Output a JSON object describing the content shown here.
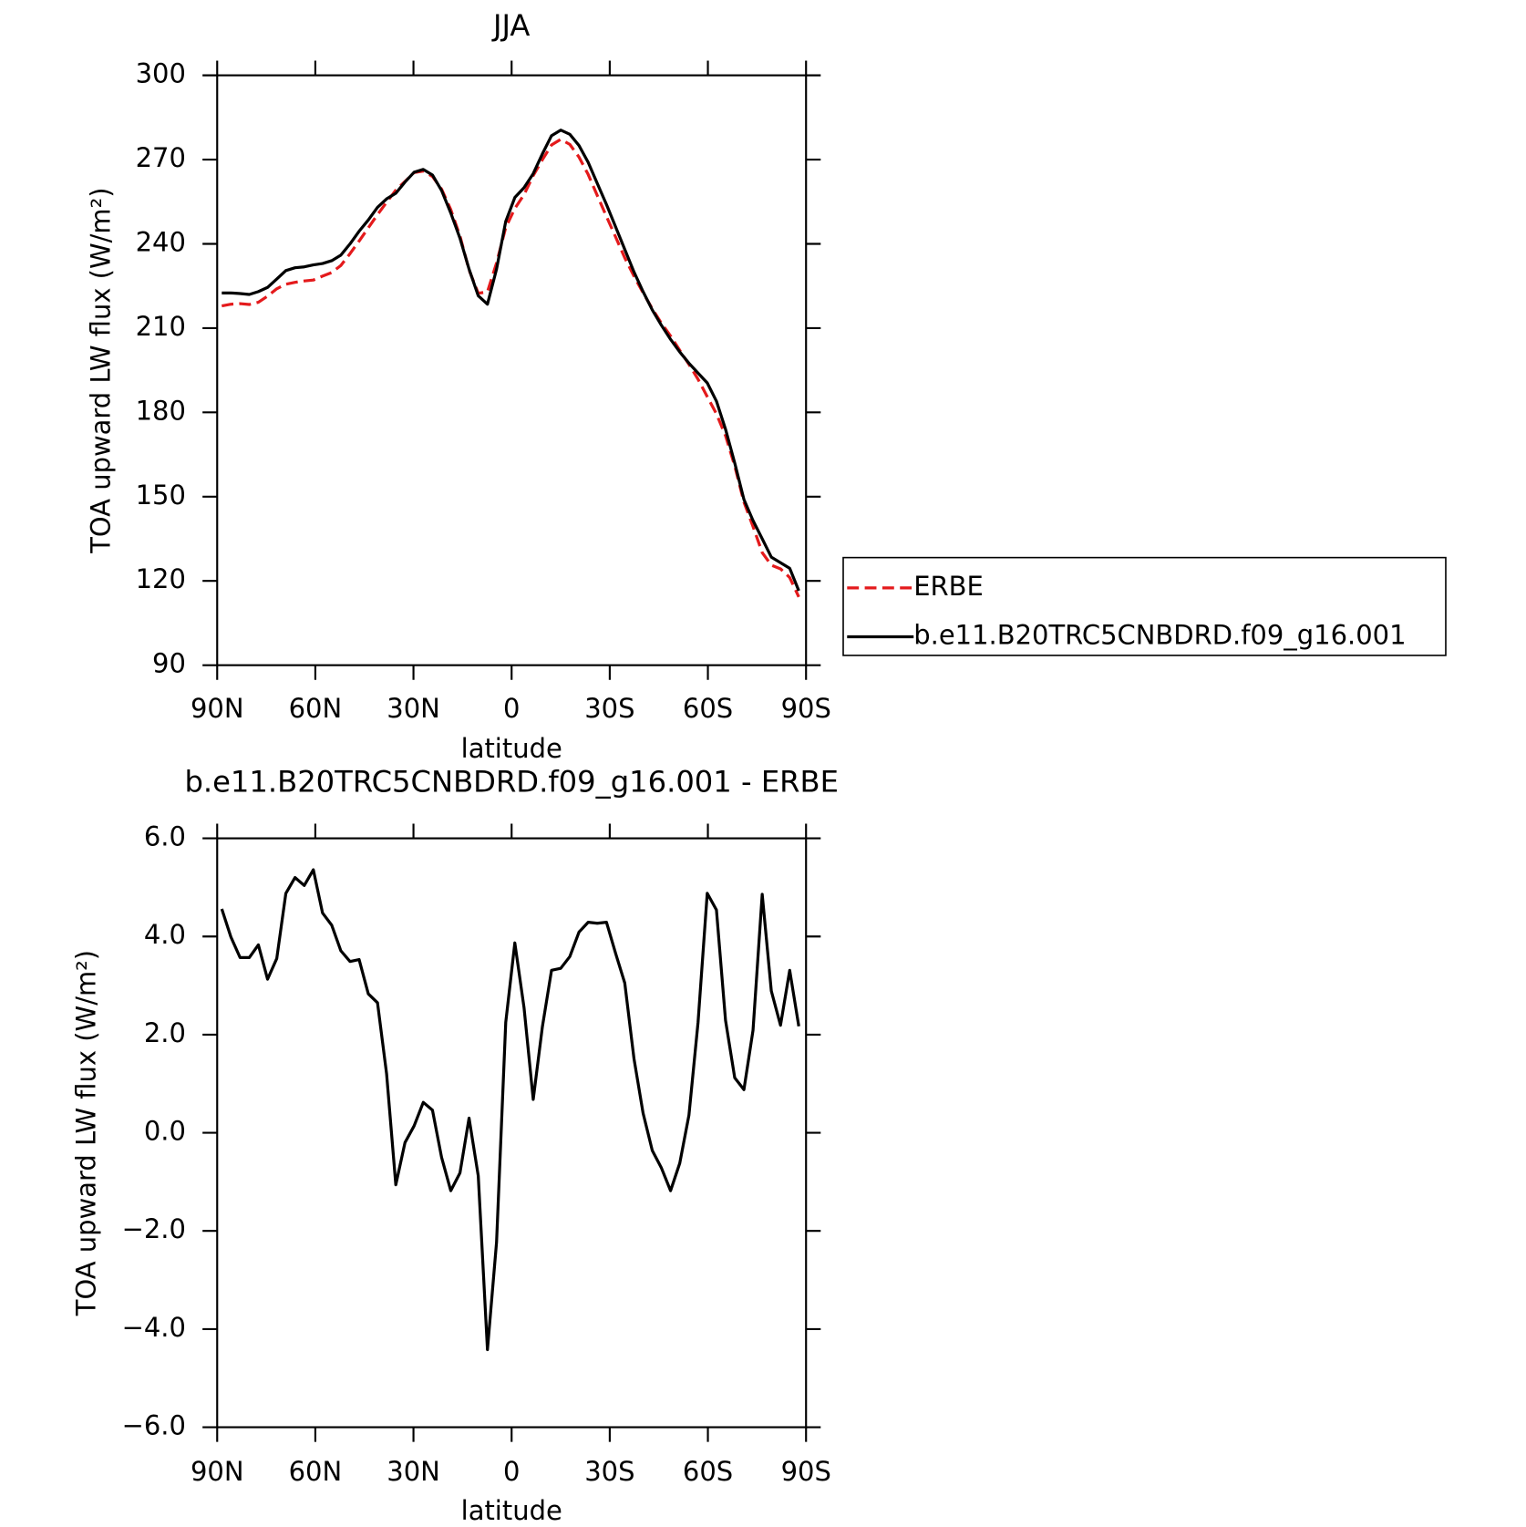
{
  "chart_data": [
    {
      "type": "line",
      "title": "JJA",
      "x_label": "latitude",
      "y_label": "TOA upward LW flux (W/m²)",
      "x": [
        88.6,
        85.8,
        83,
        80.2,
        77.4,
        74.6,
        71.8,
        69,
        66.2,
        63.4,
        60.6,
        57.8,
        55,
        52.2,
        49.4,
        46.6,
        43.8,
        41,
        38.2,
        35.4,
        32.6,
        29.8,
        27,
        24.2,
        21.4,
        18.6,
        15.8,
        13,
        10.2,
        7.4,
        4.6,
        1.8,
        -1,
        -3.8,
        -6.6,
        -9.4,
        -12.2,
        -15,
        -17.8,
        -20.6,
        -23.4,
        -26.2,
        -29,
        -31.8,
        -34.6,
        -37.4,
        -40.2,
        -43,
        -45.8,
        -48.6,
        -51.4,
        -54.2,
        -57,
        -59.8,
        -62.6,
        -65.4,
        -68.2,
        -71,
        -73.8,
        -76.6,
        -79.4,
        -82.2,
        -85,
        -87.8
      ],
      "series": [
        {
          "name": "ERBE",
          "color": "#e41a1c",
          "style": "dashed",
          "values": [
            217.9,
            218.5,
            218.7,
            218.4,
            219.2,
            221.4,
            224.0,
            225.6,
            226.3,
            226.8,
            227.1,
            228.5,
            229.8,
            232.3,
            236.5,
            241.0,
            245.7,
            250.4,
            254.8,
            259.1,
            262.2,
            265.4,
            265.9,
            264.0,
            259.5,
            252.2,
            242.8,
            230.7,
            222.4,
            222.9,
            233.2,
            245.8,
            252.6,
            257.5,
            264.3,
            269.9,
            275.2,
            277.2,
            275.4,
            270.9,
            264.7,
            257.2,
            249.7,
            242.4,
            235.0,
            228.5,
            222.6,
            216.9,
            211.7,
            207.2,
            202.1,
            197.1,
            191.8,
            185.6,
            179.5,
            171.7,
            160.9,
            148.1,
            139.4,
            130.1,
            125.6,
            124.3,
            121.2,
            114.3
          ]
        },
        {
          "name": "b.e11.B20TRC5CNBDRD.f09_g16.001",
          "color": "#000000",
          "style": "solid",
          "values": [
            222.5,
            222.5,
            222.3,
            222,
            223,
            224.5,
            227.5,
            230.5,
            231.5,
            231.8,
            232.5,
            233,
            234,
            236,
            240,
            244.5,
            248.5,
            253,
            256,
            258,
            262,
            265.5,
            266.5,
            264.5,
            259,
            251,
            242,
            231,
            221.5,
            218.5,
            231,
            248,
            256.5,
            260,
            265,
            272,
            278.5,
            280.5,
            279,
            275,
            269,
            261.5,
            254,
            246,
            238,
            230,
            223,
            216.5,
            211,
            206,
            201.5,
            197.5,
            194,
            190.5,
            184,
            174,
            162,
            149,
            141.5,
            135,
            128.5,
            126.5,
            124.5,
            116.5
          ]
        }
      ],
      "xlim": [
        90,
        -90
      ],
      "xticks": [
        {
          "value": 90,
          "label": "90N"
        },
        {
          "value": 60,
          "label": "60N"
        },
        {
          "value": 30,
          "label": "30N"
        },
        0,
        {
          "value": -30,
          "label": "30S"
        },
        {
          "value": -60,
          "label": "60S"
        },
        {
          "value": -90,
          "label": "90S"
        }
      ],
      "ylim": [
        90,
        300
      ],
      "yticks": [
        90,
        120,
        150,
        180,
        210,
        240,
        270,
        300
      ],
      "legend": "right"
    },
    {
      "type": "line",
      "title": "b.e11.B20TRC5CNBDRD.f09_g16.001 - ERBE",
      "x_label": "latitude",
      "y_label": "TOA upward LW flux (W/m²)",
      "x": [
        88.6,
        85.8,
        83,
        80.2,
        77.4,
        74.6,
        71.8,
        69,
        66.2,
        63.4,
        60.6,
        57.8,
        55,
        52.2,
        49.4,
        46.6,
        43.8,
        41,
        38.2,
        35.4,
        32.6,
        29.8,
        27,
        24.2,
        21.4,
        18.6,
        15.8,
        13,
        10.2,
        7.4,
        4.6,
        1.8,
        -1,
        -3.8,
        -6.6,
        -9.4,
        -12.2,
        -15,
        -17.8,
        -20.6,
        -23.4,
        -26.2,
        -29,
        -31.8,
        -34.6,
        -37.4,
        -40.2,
        -43,
        -45.8,
        -48.6,
        -51.4,
        -54.2,
        -57,
        -59.8,
        -62.6,
        -65.4,
        -68.2,
        -71,
        -73.8,
        -76.6,
        -79.4,
        -82.2,
        -85,
        -87.8
      ],
      "color": "#000000",
      "values": [
        4.56,
        3.99,
        3.57,
        3.57,
        3.83,
        3.13,
        3.55,
        4.88,
        5.2,
        5.04,
        5.36,
        4.48,
        4.23,
        3.71,
        3.49,
        3.53,
        2.83,
        2.65,
        1.2,
        -1.06,
        -0.2,
        0.14,
        0.62,
        0.46,
        -0.5,
        -1.18,
        -0.82,
        0.3,
        -0.88,
        -4.42,
        -2.23,
        2.25,
        3.87,
        2.55,
        0.68,
        2.15,
        3.31,
        3.35,
        3.59,
        4.09,
        4.29,
        4.27,
        4.29,
        3.65,
        3.05,
        1.51,
        0.4,
        -0.36,
        -0.72,
        -1.18,
        -0.62,
        0.36,
        2.25,
        4.88,
        4.54,
        2.29,
        1.12,
        0.88,
        2.09,
        4.86,
        2.89,
        2.19,
        3.31,
        2.17
      ],
      "xlim": [
        90,
        -90
      ],
      "xticks": [
        {
          "value": 90,
          "label": "90N"
        },
        {
          "value": 60,
          "label": "60N"
        },
        {
          "value": 30,
          "label": "30N"
        },
        0,
        {
          "value": -30,
          "label": "30S"
        },
        {
          "value": -60,
          "label": "60S"
        },
        {
          "value": -90,
          "label": "90S"
        }
      ],
      "ylim": [
        -6,
        6
      ],
      "yticks": [
        {
          "value": -6,
          "label": "−6.0"
        },
        {
          "value": -4,
          "label": "−4.0"
        },
        {
          "value": -2,
          "label": "−2.0"
        },
        {
          "value": 0,
          "label": "0.0"
        },
        {
          "value": 2,
          "label": "2.0"
        },
        {
          "value": 4,
          "label": "4.0"
        },
        {
          "value": 6,
          "label": "6.0"
        }
      ]
    }
  ]
}
